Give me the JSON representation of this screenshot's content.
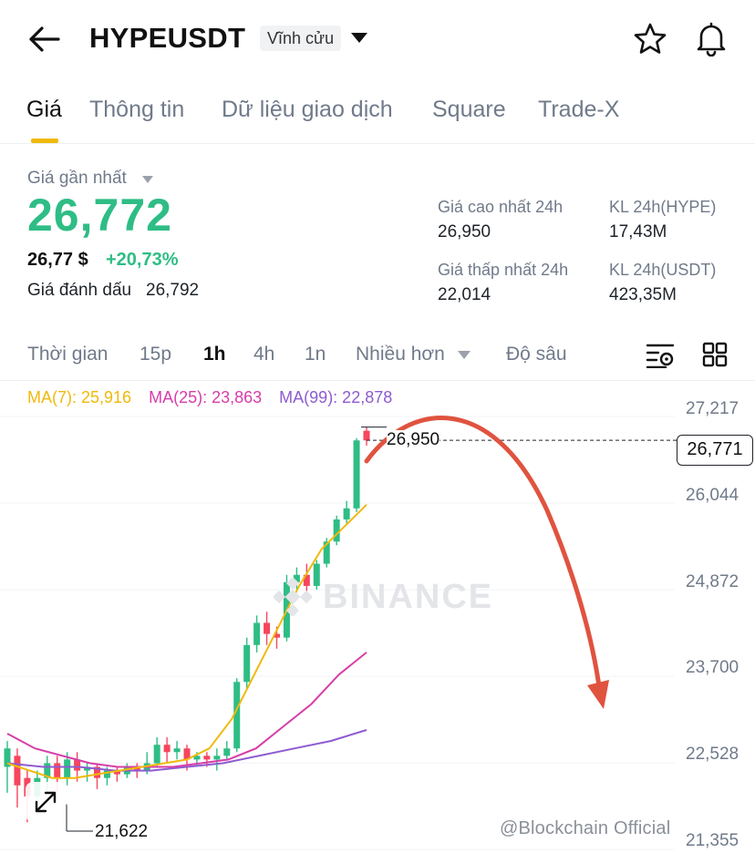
{
  "header": {
    "symbol": "HYPEUSDT",
    "contract_type": "Vĩnh cửu",
    "icons": [
      "back-arrow-icon",
      "chevron-down-icon",
      "star-icon",
      "bell-icon"
    ]
  },
  "tabs": [
    {
      "label": "Giá",
      "active": true
    },
    {
      "label": "Thông tin",
      "active": false
    },
    {
      "label": "Dữ liệu giao dịch",
      "active": false
    },
    {
      "label": "Square",
      "active": false
    },
    {
      "label": "Trade-X",
      "active": false
    }
  ],
  "price": {
    "last_label": "Giá gần nhất",
    "last": "26,772",
    "usd": "26,77 $",
    "change": "+20,73%",
    "mark_label": "Giá đánh dấu",
    "mark": "26,792"
  },
  "stats": {
    "high_label": "Giá cao nhất 24h",
    "high": "26,950",
    "vol_hype_label": "KL 24h(HYPE)",
    "vol_hype": "17,43M",
    "low_label": "Giá thấp nhất 24h",
    "low": "22,014",
    "vol_usdt_label": "KL 24h(USDT)",
    "vol_usdt": "423,35M"
  },
  "intervals": {
    "time": "Thời gian",
    "m15": "15p",
    "h1": "1h",
    "h4": "4h",
    "d1": "1n",
    "more": "Nhiều hơn",
    "depth": "Độ sâu",
    "selected": "1h"
  },
  "chart": {
    "ma7": "MA(7): 25,916",
    "ma25": "MA(25): 23,863",
    "ma99": "MA(99): 22,878",
    "current_price": "26,771",
    "high_marker": "26,950",
    "low_marker": "21,622",
    "y_labels": [
      "27,217",
      "26,044",
      "24,872",
      "23,700",
      "22,528",
      "21,355"
    ],
    "watermark_center": "BINANCE",
    "watermark_corner": "@Blockchain Official",
    "colors": {
      "up": "#2ebd85",
      "down": "#f6465d",
      "ma7": "#f0b90b",
      "ma25": "#d63ea7",
      "ma99": "#8e5bd0",
      "arrow": "#e0533f"
    }
  },
  "chart_data": {
    "type": "candlestick",
    "interval": "1h",
    "y_ticks": [
      27.217,
      26.044,
      24.872,
      23.7,
      22.528,
      21.355
    ],
    "candles": [
      [
        22.35,
        22.6,
        22.0,
        22.7
      ],
      [
        22.5,
        22.1,
        21.8,
        22.6
      ],
      [
        22.2,
        21.95,
        21.6,
        22.3
      ],
      [
        21.95,
        22.2,
        21.7,
        22.3
      ],
      [
        22.2,
        22.4,
        22.0,
        22.5
      ],
      [
        22.4,
        22.2,
        22.0,
        22.5
      ],
      [
        22.2,
        22.45,
        22.1,
        22.55
      ],
      [
        22.45,
        22.3,
        22.15,
        22.55
      ],
      [
        22.3,
        22.35,
        22.15,
        22.4
      ],
      [
        22.35,
        22.2,
        22.05,
        22.4
      ],
      [
        22.2,
        22.3,
        22.1,
        22.35
      ],
      [
        22.3,
        22.25,
        22.15,
        22.35
      ],
      [
        22.25,
        22.35,
        22.2,
        22.4
      ],
      [
        22.35,
        22.3,
        22.2,
        22.4
      ],
      [
        22.3,
        22.4,
        22.25,
        22.55
      ],
      [
        22.4,
        22.65,
        22.35,
        22.75
      ],
      [
        22.65,
        22.55,
        22.4,
        22.75
      ],
      [
        22.55,
        22.6,
        22.45,
        22.7
      ],
      [
        22.6,
        22.45,
        22.3,
        22.65
      ],
      [
        22.45,
        22.5,
        22.35,
        22.55
      ],
      [
        22.5,
        22.45,
        22.35,
        22.55
      ],
      [
        22.45,
        22.5,
        22.3,
        22.6
      ],
      [
        22.5,
        22.6,
        22.45,
        22.7
      ],
      [
        22.6,
        23.5,
        22.55,
        23.55
      ],
      [
        23.5,
        24.0,
        23.4,
        24.1
      ],
      [
        24.0,
        24.3,
        23.9,
        24.4
      ],
      [
        24.3,
        24.15,
        24.0,
        24.45
      ],
      [
        24.15,
        24.1,
        23.95,
        24.25
      ],
      [
        24.1,
        24.85,
        24.05,
        24.95
      ],
      [
        24.85,
        24.95,
        24.75,
        25.05
      ],
      [
        24.95,
        24.8,
        24.7,
        25.1
      ],
      [
        24.8,
        25.1,
        24.75,
        25.15
      ],
      [
        25.1,
        25.4,
        25.05,
        25.45
      ],
      [
        25.4,
        25.7,
        25.35,
        25.75
      ],
      [
        25.7,
        25.85,
        25.65,
        25.95
      ],
      [
        25.85,
        26.77,
        25.8,
        26.8
      ],
      [
        26.9,
        26.77,
        26.7,
        26.95
      ]
    ],
    "ma7": [
      22.4,
      22.3,
      22.2,
      22.2,
      22.25,
      22.3,
      22.35,
      22.4,
      22.45,
      22.6,
      23.0,
      23.6,
      24.2,
      24.8,
      25.3,
      25.6,
      25.9
    ],
    "ma25": [
      22.8,
      22.6,
      22.5,
      22.4,
      22.35,
      22.35,
      22.35,
      22.4,
      22.45,
      22.6,
      22.9,
      23.2,
      23.6,
      23.9
    ],
    "ma99": [
      22.4,
      22.35,
      22.35,
      22.3,
      22.3,
      22.35,
      22.4,
      22.5,
      22.6,
      22.7,
      22.85
    ]
  }
}
